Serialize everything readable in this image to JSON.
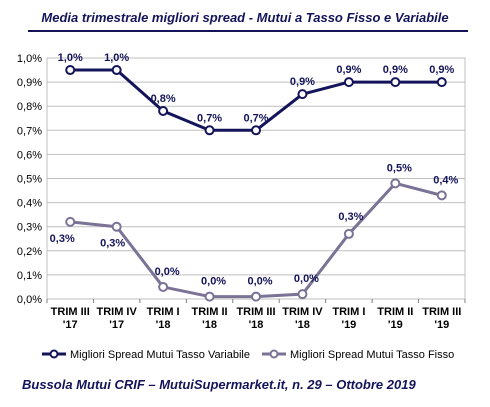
{
  "title": "Media trimestrale migliori spread - Mutui a Tasso Fisso e Variabile",
  "footer": "Bussola Mutui CRIF – MutuiSupermarket.it, n. 29 – Ottobre 2019",
  "chart_data": {
    "type": "line",
    "categories": [
      [
        "TRIM III",
        "'17"
      ],
      [
        "TRIM IV",
        "'17"
      ],
      [
        "TRIM I",
        "'18"
      ],
      [
        "TRIM II",
        "'18"
      ],
      [
        "TRIM III",
        "'18"
      ],
      [
        "TRIM IV",
        "'18"
      ],
      [
        "TRIM I",
        "'19"
      ],
      [
        "TRIM II",
        "'19"
      ],
      [
        "TRIM III",
        "'19"
      ]
    ],
    "ylim": [
      0,
      1.0
    ],
    "yticks": [
      "0,0%",
      "0,1%",
      "0,2%",
      "0,3%",
      "0,4%",
      "0,5%",
      "0,6%",
      "0,7%",
      "0,8%",
      "0,9%",
      "1,0%"
    ],
    "grid": true,
    "legend": "bottom",
    "series": [
      {
        "name": "Migliori Spread Mutui Tasso Variabile",
        "color": "#14145a",
        "values": [
          0.95,
          0.95,
          0.78,
          0.7,
          0.7,
          0.85,
          0.9,
          0.9,
          0.9
        ],
        "labels": [
          "1,0%",
          "1,0%",
          "0,8%",
          "0,7%",
          "0,7%",
          "0,9%",
          "0,9%",
          "0,9%",
          "0,9%"
        ]
      },
      {
        "name": "Migliori Spread Mutui Tasso Fisso",
        "color": "#7b7396",
        "values": [
          0.32,
          0.3,
          0.05,
          0.01,
          0.01,
          0.02,
          0.27,
          0.48,
          0.43
        ],
        "labels": [
          "0,3%",
          "0,3%",
          "0,0%",
          "0,0%",
          "0,0%",
          "0,0%",
          "0,3%",
          "0,5%",
          "0,4%"
        ]
      }
    ]
  }
}
